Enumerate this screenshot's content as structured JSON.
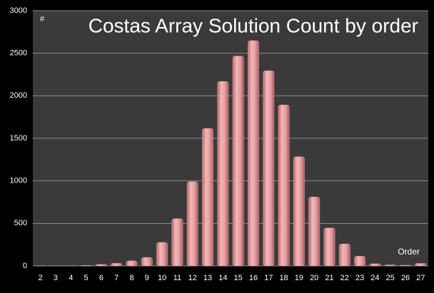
{
  "chart_data": {
    "type": "bar",
    "title": "Costas Array Solution Count by order",
    "ylabel": "#",
    "xlabel": "Order",
    "categories": [
      "2",
      "3",
      "4",
      "5",
      "6",
      "7",
      "8",
      "9",
      "10",
      "11",
      "12",
      "13",
      "14",
      "15",
      "16",
      "17",
      "18",
      "19",
      "20",
      "21",
      "22",
      "23",
      "24",
      "25",
      "26",
      "27"
    ],
    "values": [
      1,
      1,
      2,
      6,
      17,
      30,
      60,
      100,
      277,
      555,
      990,
      1616,
      2168,
      2467,
      2648,
      2294,
      1892,
      1283,
      810,
      446,
      259,
      114,
      25,
      12,
      8,
      29
    ],
    "color": "#e09a9c",
    "ylim": [
      0,
      3000
    ],
    "yticks": [
      0,
      500,
      1000,
      1500,
      2000,
      2500,
      3000
    ],
    "grid": true
  }
}
